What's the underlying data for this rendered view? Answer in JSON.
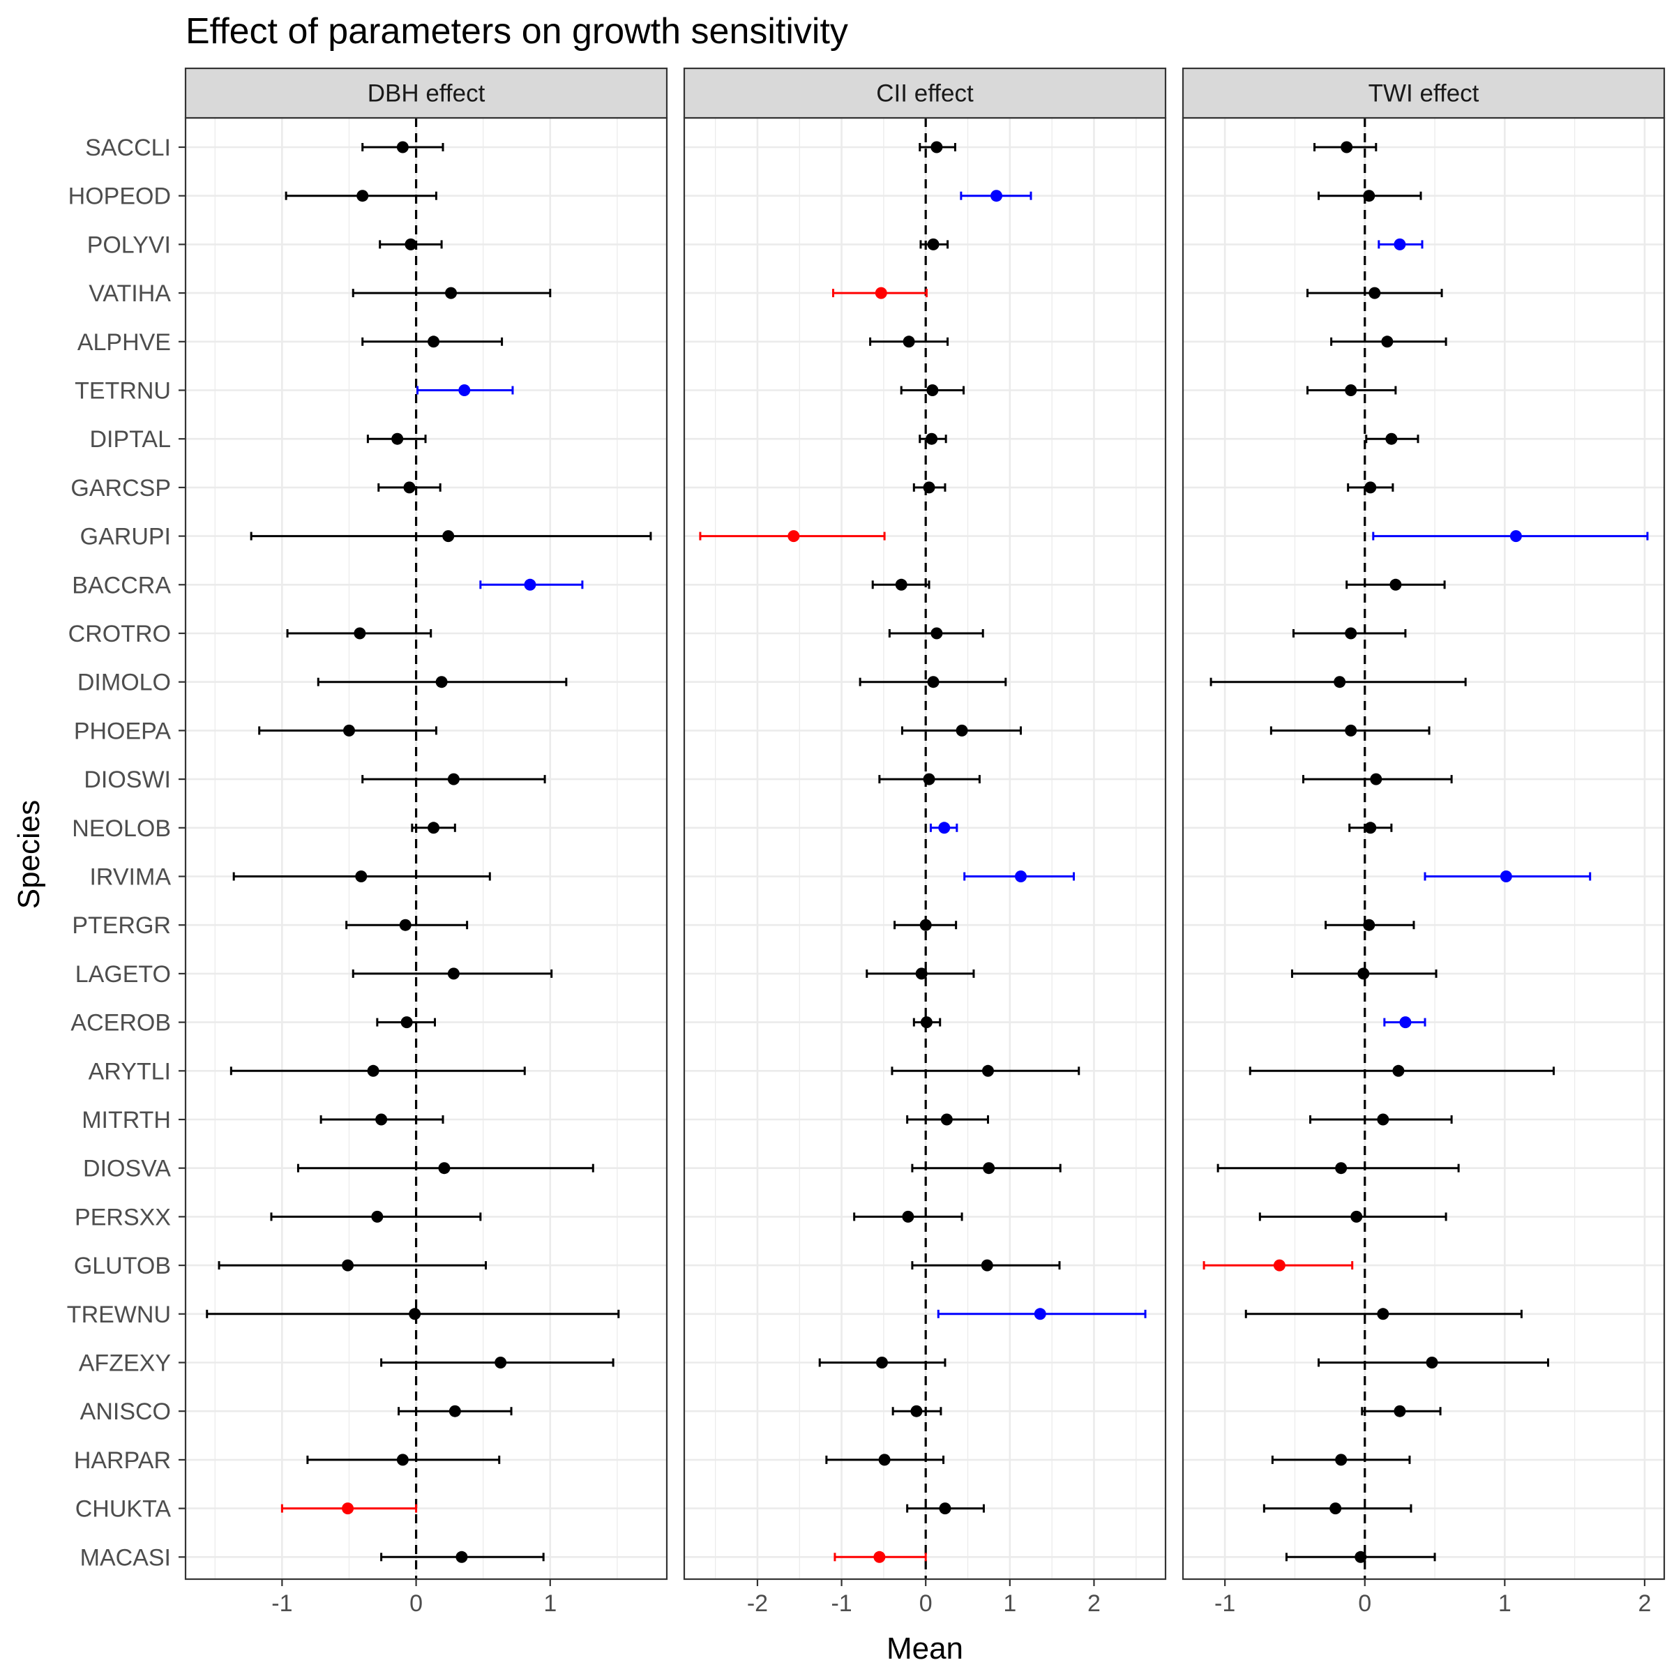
{
  "chart_data": {
    "type": "scatter",
    "title": "Effect of parameters on growth sensitivity",
    "xlabel": "Mean",
    "ylabel": "Species",
    "species": [
      "SACCLI",
      "HOPEOD",
      "POLYVI",
      "VATIHA",
      "ALPHVE",
      "TETRNU",
      "DIPTAL",
      "GARCSP",
      "GARUPI",
      "BACCRA",
      "CROTRO",
      "DIMOLO",
      "PHOEPA",
      "DIOSWI",
      "NEOLOB",
      "IRVIMA",
      "PTERGR",
      "LAGETO",
      "ACEROB",
      "ARYTLI",
      "MITRTH",
      "DIOSVA",
      "PERSXX",
      "GLUTOB",
      "TREWNU",
      "AFZEXY",
      "ANISCO",
      "HARPAR",
      "CHUKTA",
      "MACASI"
    ],
    "colors": {
      "black": "#000000",
      "blue": "#0000ff",
      "red": "#ff0000",
      "zero_line": "#000000",
      "grid": "#ebebeb",
      "strip_fill": "#d9d9d9"
    },
    "panels": [
      {
        "label": "DBH effect",
        "xlim": [
          -1.72,
          1.87
        ],
        "ticks": [
          -1,
          0,
          1
        ],
        "tick_labels": [
          "-1",
          "0",
          "1"
        ],
        "points": [
          {
            "mean": -0.1,
            "lo": -0.4,
            "hi": 0.2,
            "color": "black"
          },
          {
            "mean": -0.4,
            "lo": -0.97,
            "hi": 0.15,
            "color": "black"
          },
          {
            "mean": -0.04,
            "lo": -0.27,
            "hi": 0.19,
            "color": "black"
          },
          {
            "mean": 0.26,
            "lo": -0.47,
            "hi": 1.0,
            "color": "black"
          },
          {
            "mean": 0.13,
            "lo": -0.4,
            "hi": 0.64,
            "color": "black"
          },
          {
            "mean": 0.36,
            "lo": 0.01,
            "hi": 0.72,
            "color": "blue"
          },
          {
            "mean": -0.14,
            "lo": -0.36,
            "hi": 0.07,
            "color": "black"
          },
          {
            "mean": -0.05,
            "lo": -0.28,
            "hi": 0.18,
            "color": "black"
          },
          {
            "mean": 0.24,
            "lo": -1.23,
            "hi": 1.75,
            "color": "black"
          },
          {
            "mean": 0.85,
            "lo": 0.48,
            "hi": 1.24,
            "color": "blue"
          },
          {
            "mean": -0.42,
            "lo": -0.96,
            "hi": 0.11,
            "color": "black"
          },
          {
            "mean": 0.19,
            "lo": -0.73,
            "hi": 1.12,
            "color": "black"
          },
          {
            "mean": -0.5,
            "lo": -1.17,
            "hi": 0.15,
            "color": "black"
          },
          {
            "mean": 0.28,
            "lo": -0.4,
            "hi": 0.96,
            "color": "black"
          },
          {
            "mean": 0.13,
            "lo": -0.03,
            "hi": 0.29,
            "color": "black"
          },
          {
            "mean": -0.41,
            "lo": -1.36,
            "hi": 0.55,
            "color": "black"
          },
          {
            "mean": -0.08,
            "lo": -0.52,
            "hi": 0.38,
            "color": "black"
          },
          {
            "mean": 0.28,
            "lo": -0.47,
            "hi": 1.01,
            "color": "black"
          },
          {
            "mean": -0.07,
            "lo": -0.29,
            "hi": 0.14,
            "color": "black"
          },
          {
            "mean": -0.32,
            "lo": -1.38,
            "hi": 0.81,
            "color": "black"
          },
          {
            "mean": -0.26,
            "lo": -0.71,
            "hi": 0.2,
            "color": "black"
          },
          {
            "mean": 0.21,
            "lo": -0.88,
            "hi": 1.32,
            "color": "black"
          },
          {
            "mean": -0.29,
            "lo": -1.08,
            "hi": 0.48,
            "color": "black"
          },
          {
            "mean": -0.51,
            "lo": -1.47,
            "hi": 0.52,
            "color": "black"
          },
          {
            "mean": -0.01,
            "lo": -1.56,
            "hi": 1.51,
            "color": "black"
          },
          {
            "mean": 0.63,
            "lo": -0.26,
            "hi": 1.47,
            "color": "black"
          },
          {
            "mean": 0.29,
            "lo": -0.13,
            "hi": 0.71,
            "color": "black"
          },
          {
            "mean": -0.1,
            "lo": -0.81,
            "hi": 0.62,
            "color": "black"
          },
          {
            "mean": -0.51,
            "lo": -1.0,
            "hi": 0.0,
            "color": "red"
          },
          {
            "mean": 0.34,
            "lo": -0.26,
            "hi": 0.95,
            "color": "black"
          }
        ]
      },
      {
        "label": "CII effect",
        "xlim": [
          -2.87,
          2.85
        ],
        "ticks": [
          -2,
          -1,
          0,
          1,
          2
        ],
        "tick_labels": [
          "-2",
          "-1",
          "0",
          "1",
          "2"
        ],
        "points": [
          {
            "mean": 0.13,
            "lo": -0.07,
            "hi": 0.35,
            "color": "black"
          },
          {
            "mean": 0.84,
            "lo": 0.42,
            "hi": 1.25,
            "color": "blue"
          },
          {
            "mean": 0.09,
            "lo": -0.06,
            "hi": 0.26,
            "color": "black"
          },
          {
            "mean": -0.53,
            "lo": -1.1,
            "hi": 0.01,
            "color": "red"
          },
          {
            "mean": -0.2,
            "lo": -0.66,
            "hi": 0.26,
            "color": "black"
          },
          {
            "mean": 0.08,
            "lo": -0.29,
            "hi": 0.45,
            "color": "black"
          },
          {
            "mean": 0.07,
            "lo": -0.07,
            "hi": 0.24,
            "color": "black"
          },
          {
            "mean": 0.04,
            "lo": -0.14,
            "hi": 0.23,
            "color": "black"
          },
          {
            "mean": -1.57,
            "lo": -2.68,
            "hi": -0.49,
            "color": "red"
          },
          {
            "mean": -0.29,
            "lo": -0.63,
            "hi": 0.04,
            "color": "black"
          },
          {
            "mean": 0.13,
            "lo": -0.43,
            "hi": 0.68,
            "color": "black"
          },
          {
            "mean": 0.09,
            "lo": -0.78,
            "hi": 0.95,
            "color": "black"
          },
          {
            "mean": 0.43,
            "lo": -0.28,
            "hi": 1.13,
            "color": "black"
          },
          {
            "mean": 0.04,
            "lo": -0.55,
            "hi": 0.64,
            "color": "black"
          },
          {
            "mean": 0.22,
            "lo": 0.06,
            "hi": 0.37,
            "color": "blue"
          },
          {
            "mean": 1.13,
            "lo": 0.46,
            "hi": 1.76,
            "color": "blue"
          },
          {
            "mean": 0.0,
            "lo": -0.37,
            "hi": 0.36,
            "color": "black"
          },
          {
            "mean": -0.05,
            "lo": -0.7,
            "hi": 0.57,
            "color": "black"
          },
          {
            "mean": 0.01,
            "lo": -0.14,
            "hi": 0.17,
            "color": "black"
          },
          {
            "mean": 0.74,
            "lo": -0.4,
            "hi": 1.82,
            "color": "black"
          },
          {
            "mean": 0.25,
            "lo": -0.22,
            "hi": 0.74,
            "color": "black"
          },
          {
            "mean": 0.75,
            "lo": -0.16,
            "hi": 1.6,
            "color": "black"
          },
          {
            "mean": -0.21,
            "lo": -0.85,
            "hi": 0.43,
            "color": "black"
          },
          {
            "mean": 0.73,
            "lo": -0.16,
            "hi": 1.59,
            "color": "black"
          },
          {
            "mean": 1.36,
            "lo": 0.15,
            "hi": 2.61,
            "color": "blue"
          },
          {
            "mean": -0.52,
            "lo": -1.26,
            "hi": 0.23,
            "color": "black"
          },
          {
            "mean": -0.11,
            "lo": -0.39,
            "hi": 0.18,
            "color": "black"
          },
          {
            "mean": -0.49,
            "lo": -1.18,
            "hi": 0.21,
            "color": "black"
          },
          {
            "mean": 0.23,
            "lo": -0.22,
            "hi": 0.69,
            "color": "black"
          },
          {
            "mean": -0.55,
            "lo": -1.08,
            "hi": 0.0,
            "color": "red"
          }
        ]
      },
      {
        "label": "TWI effect",
        "xlim": [
          -1.3,
          2.14
        ],
        "ticks": [
          -1,
          0,
          1,
          2
        ],
        "tick_labels": [
          "-1",
          "0",
          "1",
          "2"
        ],
        "points": [
          {
            "mean": -0.13,
            "lo": -0.36,
            "hi": 0.08,
            "color": "black"
          },
          {
            "mean": 0.03,
            "lo": -0.33,
            "hi": 0.4,
            "color": "black"
          },
          {
            "mean": 0.25,
            "lo": 0.1,
            "hi": 0.41,
            "color": "blue"
          },
          {
            "mean": 0.07,
            "lo": -0.41,
            "hi": 0.55,
            "color": "black"
          },
          {
            "mean": 0.16,
            "lo": -0.24,
            "hi": 0.58,
            "color": "black"
          },
          {
            "mean": -0.1,
            "lo": -0.41,
            "hi": 0.22,
            "color": "black"
          },
          {
            "mean": 0.19,
            "lo": 0.01,
            "hi": 0.38,
            "color": "black"
          },
          {
            "mean": 0.04,
            "lo": -0.12,
            "hi": 0.2,
            "color": "black"
          },
          {
            "mean": 1.08,
            "lo": 0.06,
            "hi": 2.02,
            "color": "blue"
          },
          {
            "mean": 0.22,
            "lo": -0.13,
            "hi": 0.57,
            "color": "black"
          },
          {
            "mean": -0.1,
            "lo": -0.51,
            "hi": 0.29,
            "color": "black"
          },
          {
            "mean": -0.18,
            "lo": -1.1,
            "hi": 0.72,
            "color": "black"
          },
          {
            "mean": -0.1,
            "lo": -0.67,
            "hi": 0.46,
            "color": "black"
          },
          {
            "mean": 0.08,
            "lo": -0.44,
            "hi": 0.62,
            "color": "black"
          },
          {
            "mean": 0.04,
            "lo": -0.11,
            "hi": 0.19,
            "color": "black"
          },
          {
            "mean": 1.01,
            "lo": 0.43,
            "hi": 1.61,
            "color": "blue"
          },
          {
            "mean": 0.03,
            "lo": -0.28,
            "hi": 0.35,
            "color": "black"
          },
          {
            "mean": -0.01,
            "lo": -0.52,
            "hi": 0.51,
            "color": "black"
          },
          {
            "mean": 0.29,
            "lo": 0.14,
            "hi": 0.43,
            "color": "blue"
          },
          {
            "mean": 0.24,
            "lo": -0.82,
            "hi": 1.35,
            "color": "black"
          },
          {
            "mean": 0.13,
            "lo": -0.39,
            "hi": 0.62,
            "color": "black"
          },
          {
            "mean": -0.17,
            "lo": -1.05,
            "hi": 0.67,
            "color": "black"
          },
          {
            "mean": -0.06,
            "lo": -0.75,
            "hi": 0.58,
            "color": "black"
          },
          {
            "mean": -0.61,
            "lo": -1.15,
            "hi": -0.09,
            "color": "red"
          },
          {
            "mean": 0.13,
            "lo": -0.85,
            "hi": 1.12,
            "color": "black"
          },
          {
            "mean": 0.48,
            "lo": -0.33,
            "hi": 1.31,
            "color": "black"
          },
          {
            "mean": 0.25,
            "lo": -0.02,
            "hi": 0.54,
            "color": "black"
          },
          {
            "mean": -0.17,
            "lo": -0.66,
            "hi": 0.32,
            "color": "black"
          },
          {
            "mean": -0.21,
            "lo": -0.72,
            "hi": 0.33,
            "color": "black"
          },
          {
            "mean": -0.03,
            "lo": -0.56,
            "hi": 0.5,
            "color": "black"
          }
        ]
      }
    ]
  }
}
